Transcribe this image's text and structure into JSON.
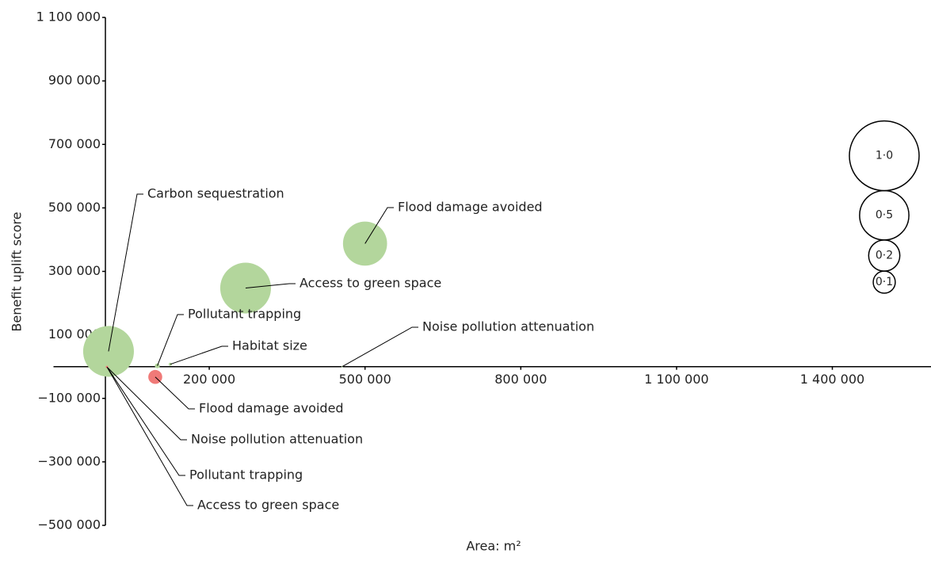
{
  "chart_data": {
    "type": "bubble",
    "xlabel": "Area: m²",
    "ylabel": "Benefit uplift score",
    "xlim": [
      -100000,
      1590000
    ],
    "ylim": [
      -500000,
      1100000
    ],
    "xticks": [
      {
        "value": 200000,
        "label": "200 000"
      },
      {
        "value": 500000,
        "label": "500 000"
      },
      {
        "value": 800000,
        "label": "800 000"
      },
      {
        "value": 1100000,
        "label": "1 100 000"
      },
      {
        "value": 1400000,
        "label": "1 400 000"
      }
    ],
    "yticks": [
      {
        "value": 1100000,
        "label": "1 100 000"
      },
      {
        "value": 900000,
        "label": "900 000"
      },
      {
        "value": 700000,
        "label": "700 000"
      },
      {
        "value": 500000,
        "label": "500 000"
      },
      {
        "value": 300000,
        "label": "300 000"
      },
      {
        "value": 100000,
        "label": "100 000"
      },
      {
        "value": -100000,
        "label": "−100 000"
      },
      {
        "value": -300000,
        "label": "−300 000"
      },
      {
        "value": -500000,
        "label": "−500 000"
      }
    ],
    "points": [
      {
        "label": "Carbon sequestration",
        "x": 6000,
        "y": 48000,
        "size": 0.53,
        "color": "#b3d69c"
      },
      {
        "label": "Access to green space",
        "x": 270000,
        "y": 247500,
        "size": 0.53,
        "color": "#b3d69c"
      },
      {
        "label": "Flood damage avoided",
        "x": 500000,
        "y": 387500,
        "size": 0.4,
        "color": "#b3d69c"
      },
      {
        "label": "Pollutant trapping",
        "x": 100000,
        "y": 2500,
        "size": 0.005,
        "color": "#b3d69c"
      },
      {
        "label": "Habitat size",
        "x": 125000,
        "y": 7500,
        "size": 0.002,
        "color": "#b3d69c"
      },
      {
        "label": "Noise pollution attenuation",
        "x": 456000,
        "y": 0,
        "size": 0.0005,
        "color": "#b3d69c"
      },
      {
        "label": "Flood damage avoided",
        "x": 96000,
        "y": -32500,
        "size": 0.04,
        "color": "#f07a78"
      },
      {
        "label": "Noise pollution attenuation",
        "x": 3000,
        "y": -1000,
        "size": 0.001,
        "color": "#f07a78"
      },
      {
        "label": "Pollutant trapping",
        "x": 3000,
        "y": -1000,
        "size": 0.001,
        "color": "#f07a78"
      },
      {
        "label": "Access to green space",
        "x": 3000,
        "y": -1000,
        "size": 0.001,
        "color": "#f07a78"
      }
    ],
    "size_legend": [
      {
        "value": 1.0,
        "label": "1·0"
      },
      {
        "value": 0.5,
        "label": "0·5"
      },
      {
        "value": 0.2,
        "label": "0·2"
      },
      {
        "value": 0.1,
        "label": "0·1"
      }
    ]
  }
}
